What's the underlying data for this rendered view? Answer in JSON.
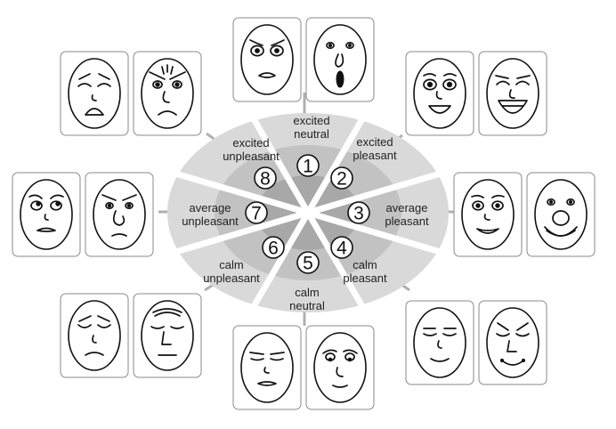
{
  "colors": {
    "ring_outer": "#d9d9d9",
    "ring_mid": "#c2c2c2",
    "ring_inner": "#a8a8a8",
    "divider": "#ffffff",
    "card_border": "#8a8a8a",
    "connector": "#b0b0b0"
  },
  "sectors": [
    {
      "number": "1",
      "line1": "excited",
      "line2": "neutral"
    },
    {
      "number": "2",
      "line1": "excited",
      "line2": "pleasant"
    },
    {
      "number": "3",
      "line1": "average",
      "line2": "pleasant"
    },
    {
      "number": "4",
      "line1": "calm",
      "line2": "pleasant"
    },
    {
      "number": "5",
      "line1": "calm",
      "line2": "neutral"
    },
    {
      "number": "6",
      "line1": "calm",
      "line2": "unpleasant"
    },
    {
      "number": "7",
      "line1": "average",
      "line2": "unpleasant"
    },
    {
      "number": "8",
      "line1": "excited",
      "line2": "unpleasant"
    }
  ],
  "face_groups": [
    {
      "name": "top",
      "faces": [
        "worried-face-icon",
        "shocked-face-icon"
      ]
    },
    {
      "name": "top-right",
      "faces": [
        "smiling-face-icon",
        "laughing-face-icon"
      ]
    },
    {
      "name": "right",
      "faces": [
        "content-face-icon",
        "broad-smile-face-icon"
      ]
    },
    {
      "name": "bottom-right",
      "faces": [
        "serene-face-icon",
        "sleepy-smile-face-icon"
      ]
    },
    {
      "name": "bottom",
      "faces": [
        "relaxed-face-icon",
        "dazed-face-icon"
      ]
    },
    {
      "name": "bottom-left",
      "faces": [
        "sad-face-icon",
        "glum-face-icon"
      ]
    },
    {
      "name": "left",
      "faces": [
        "uneasy-face-icon",
        "frowning-face-icon"
      ]
    },
    {
      "name": "top-left",
      "faces": [
        "crying-face-icon",
        "angry-face-icon"
      ]
    }
  ]
}
